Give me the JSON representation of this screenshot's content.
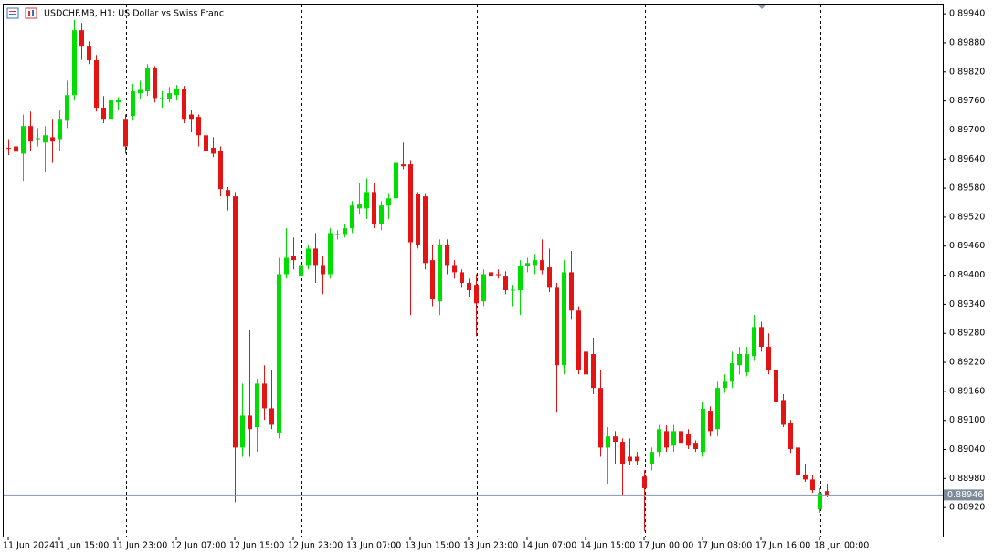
{
  "chart_data": {
    "type": "candlestick",
    "title": "USDCHF.MB, H1:  US Dollar vs Swiss Franc",
    "categories": [
      "11 Jun 2024",
      null,
      null,
      null,
      null,
      null,
      null,
      "11 Jun 15:00",
      null,
      null,
      null,
      null,
      null,
      null,
      null,
      "11 Jun 23:00",
      null,
      null,
      null,
      null,
      null,
      null,
      null,
      "12 Jun 07:00",
      null,
      null,
      null,
      null,
      null,
      null,
      null,
      "12 Jun 15:00",
      null,
      null,
      null,
      null,
      null,
      null,
      null,
      "12 Jun 23:00",
      null,
      null,
      null,
      null,
      null,
      null,
      null,
      "13 Jun 07:00",
      null,
      null,
      null,
      null,
      null,
      null,
      null,
      "13 Jun 15:00",
      null,
      null,
      null,
      null,
      null,
      null,
      null,
      "13 Jun 23:00",
      null,
      null,
      null,
      null,
      null,
      null,
      null,
      "14 Jun 07:00",
      null,
      null,
      null,
      null,
      null,
      null,
      null,
      "14 Jun 15:00",
      null,
      null,
      null,
      null,
      null,
      null,
      null,
      "17 Jun 00:00",
      null,
      null,
      null,
      null,
      null,
      null,
      null,
      "17 Jun 08:00",
      null,
      null,
      null,
      null,
      null,
      null,
      null,
      "17 Jun 16:00",
      null,
      null,
      null,
      null,
      null,
      null,
      null,
      "18 Jun 00:00",
      null
    ],
    "open": [
      0.89663,
      0.89666,
      0.89651,
      0.89708,
      0.89681,
      0.89674,
      0.89685,
      0.89681,
      0.89719,
      0.89772,
      0.89906,
      0.89874,
      0.89844,
      0.89746,
      0.89723,
      0.89757,
      0.89723,
      0.89729,
      0.89776,
      0.8978,
      0.89827,
      0.89764,
      0.89764,
      0.89772,
      0.89785,
      0.89732,
      0.89727,
      0.89689,
      0.89663,
      0.89657,
      0.89576,
      0.89563,
      0.89044,
      0.8911,
      0.89086,
      0.89176,
      0.89125,
      0.89073,
      0.89402,
      0.8944,
      0.89399,
      0.89421,
      0.89455,
      0.89421,
      0.89402,
      0.89484,
      0.89485,
      0.89497,
      0.89538,
      0.89538,
      0.89572,
      0.89506,
      0.89544,
      0.89559,
      0.89629,
      0.89629,
      0.89567,
      0.89563,
      0.89431,
      0.89346,
      0.89463,
      0.89421,
      0.89406,
      0.89384,
      0.8938,
      0.89346,
      0.89406,
      0.89402,
      0.89399,
      0.89369,
      0.89369,
      0.89418,
      0.89421,
      0.89431,
      0.89416,
      0.89374,
      0.89214,
      0.89406,
      0.89327,
      0.89242,
      0.89237,
      0.89167,
      0.89044,
      0.89067,
      0.89056,
      0.89025,
      0.89025,
      0.88984,
      0.8901,
      0.89035,
      0.89078,
      0.89048,
      0.89078,
      0.89071,
      0.89052,
      0.89035,
      0.8912,
      0.89082,
      0.89167,
      0.8918,
      0.89214,
      0.89199,
      0.89233,
      0.89293,
      0.89252,
      0.89205,
      0.89142,
      0.89095,
      0.89044,
      0.88988,
      0.88978,
      0.88916,
      0.88954
    ],
    "high": [
      0.89681,
      0.89695,
      0.89732,
      0.89738,
      0.89704,
      0.89708,
      0.89723,
      0.89742,
      0.89802,
      0.89927,
      0.89921,
      0.89883,
      0.89855,
      0.8977,
      0.8978,
      0.89768,
      0.89732,
      0.89795,
      0.89802,
      0.89836,
      0.89832,
      0.8978,
      0.89789,
      0.89793,
      0.89791,
      0.89742,
      0.89732,
      0.89695,
      0.89685,
      0.89666,
      0.89582,
      0.89572,
      0.89176,
      0.89286,
      0.89186,
      0.89214,
      0.89205,
      0.89436,
      0.89497,
      0.89478,
      0.89444,
      0.89463,
      0.89487,
      0.8944,
      0.89497,
      0.89493,
      0.89506,
      0.89553,
      0.89591,
      0.896,
      0.89591,
      0.89553,
      0.89568,
      0.89648,
      0.89674,
      0.89638,
      0.89572,
      0.89568,
      0.89463,
      0.89474,
      0.89474,
      0.89431,
      0.89412,
      0.89393,
      0.89402,
      0.89412,
      0.89414,
      0.89412,
      0.89408,
      0.8938,
      0.89431,
      0.89436,
      0.89444,
      0.89474,
      0.89455,
      0.89384,
      0.89431,
      0.8945,
      0.89336,
      0.89274,
      0.89271,
      0.89205,
      0.89086,
      0.89078,
      0.89063,
      0.89063,
      0.89035,
      0.88997,
      0.89044,
      0.89091,
      0.8909,
      0.89091,
      0.89091,
      0.89082,
      0.89059,
      0.89139,
      0.89129,
      0.8918,
      0.89195,
      0.89242,
      0.89252,
      0.89252,
      0.89318,
      0.89304,
      0.8928,
      0.89214,
      0.89154,
      0.89101,
      0.89048,
      0.8901,
      0.88988,
      0.8896,
      0.88969
    ],
    "low": [
      0.89648,
      0.8961,
      0.89595,
      0.89657,
      0.89666,
      0.89614,
      0.89632,
      0.89657,
      0.89704,
      0.89761,
      0.89845,
      0.89836,
      0.89738,
      0.89714,
      0.89708,
      0.89742,
      0.89651,
      0.89719,
      0.89764,
      0.8977,
      0.89757,
      0.89746,
      0.89757,
      0.89761,
      0.89714,
      0.89695,
      0.89666,
      0.89648,
      0.89644,
      0.89563,
      0.89534,
      0.88931,
      0.89025,
      0.89025,
      0.89035,
      0.89101,
      0.89082,
      0.89063,
      0.89393,
      0.89412,
      0.89237,
      0.89412,
      0.89384,
      0.89361,
      0.89393,
      0.89474,
      0.89478,
      0.89487,
      0.89525,
      0.89516,
      0.89497,
      0.89493,
      0.89516,
      0.89544,
      0.89619,
      0.89318,
      0.89455,
      0.89412,
      0.89336,
      0.89318,
      0.89402,
      0.89393,
      0.89374,
      0.89355,
      0.89274,
      0.89336,
      0.89391,
      0.89393,
      0.89361,
      0.89336,
      0.89318,
      0.89406,
      0.89402,
      0.89402,
      0.89365,
      0.89116,
      0.89195,
      0.89308,
      0.89195,
      0.89176,
      0.89154,
      0.89025,
      0.88969,
      0.8901,
      0.88946,
      0.89007,
      0.89007,
      0.88871,
      0.88997,
      0.89025,
      0.89035,
      0.89035,
      0.89041,
      0.89041,
      0.89035,
      0.89025,
      0.89067,
      0.89067,
      0.89157,
      0.89167,
      0.89195,
      0.89191,
      0.89223,
      0.89242,
      0.89195,
      0.89135,
      0.89086,
      0.89033,
      0.88984,
      0.88973,
      0.8895,
      0.88909,
      0.88941
    ],
    "close": [
      0.89661,
      0.89655,
      0.89708,
      0.89676,
      0.89683,
      0.89689,
      0.89676,
      0.89723,
      0.89772,
      0.89906,
      0.89874,
      0.89844,
      0.89746,
      0.89723,
      0.89761,
      0.89761,
      0.89666,
      0.8978,
      0.89783,
      0.89827,
      0.89766,
      0.89766,
      0.89776,
      0.89785,
      0.89723,
      0.89723,
      0.89689,
      0.89657,
      0.89651,
      0.89578,
      0.89563,
      0.89044,
      0.8911,
      0.89082,
      0.89176,
      0.89125,
      0.89091,
      0.89402,
      0.89436,
      0.89431,
      0.89421,
      0.89455,
      0.89421,
      0.89402,
      0.89487,
      0.89485,
      0.89497,
      0.89544,
      0.89546,
      0.89572,
      0.89506,
      0.89544,
      0.89559,
      0.89632,
      0.89625,
      0.89468,
      0.89463,
      0.89425,
      0.8935,
      0.89463,
      0.89421,
      0.89406,
      0.89384,
      0.89369,
      0.89342,
      0.89402,
      0.89399,
      0.89401,
      0.89369,
      0.8937,
      0.89418,
      0.89425,
      0.89431,
      0.8941,
      0.89374,
      0.89214,
      0.89406,
      0.89327,
      0.89205,
      0.89195,
      0.89167,
      0.89044,
      0.89067,
      0.89056,
      0.8901,
      0.89016,
      0.89016,
      0.8896,
      0.89035,
      0.89082,
      0.89044,
      0.89078,
      0.89052,
      0.89048,
      0.89041,
      0.89124,
      0.89078,
      0.89167,
      0.8918,
      0.89218,
      0.89237,
      0.89237,
      0.89293,
      0.89252,
      0.89205,
      0.89139,
      0.89091,
      0.89041,
      0.88988,
      0.88978,
      0.88956,
      0.8895,
      0.88946
    ],
    "up_color": "#00dd00",
    "down_color": "#e41414",
    "last_price": 0.88946,
    "ylim": [
      0.8886,
      0.89961
    ],
    "yticks": [
      {
        "value": 0.8994,
        "label": "0.89940"
      },
      {
        "value": 0.8988,
        "label": "0.89880"
      },
      {
        "value": 0.8982,
        "label": "0.89820"
      },
      {
        "value": 0.8976,
        "label": "0.89760"
      },
      {
        "value": 0.897,
        "label": "0.89700"
      },
      {
        "value": 0.8964,
        "label": "0.89640"
      },
      {
        "value": 0.8958,
        "label": "0.89580"
      },
      {
        "value": 0.8952,
        "label": "0.89520"
      },
      {
        "value": 0.8946,
        "label": "0.89460"
      },
      {
        "value": 0.894,
        "label": "0.89400"
      },
      {
        "value": 0.8934,
        "label": "0.89340"
      },
      {
        "value": 0.8928,
        "label": "0.89280"
      },
      {
        "value": 0.8922,
        "label": "0.89220"
      },
      {
        "value": 0.8916,
        "label": "0.89160"
      },
      {
        "value": 0.891,
        "label": "0.89100"
      },
      {
        "value": 0.8904,
        "label": "0.89040"
      },
      {
        "value": 0.8898,
        "label": "0.88980"
      },
      {
        "value": 0.8892,
        "label": "0.88920"
      }
    ],
    "grid": false
  }
}
